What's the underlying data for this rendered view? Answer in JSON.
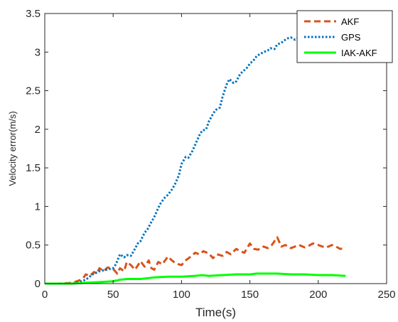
{
  "chart_data": {
    "type": "line",
    "title": "",
    "xlabel": "Time(s)",
    "ylabel": "Velocity error(m/s)",
    "xlim": [
      0,
      250
    ],
    "ylim": [
      0,
      3.5
    ],
    "xticks": [
      0,
      50,
      100,
      150,
      200,
      250
    ],
    "yticks": [
      0,
      0.5,
      1,
      1.5,
      2,
      2.5,
      3,
      3.5
    ],
    "xtick_labels": [
      "0",
      "50",
      "100",
      "150",
      "200",
      "250"
    ],
    "ytick_labels": [
      "0",
      "0.5",
      "1",
      "1.5",
      "2",
      "2.5",
      "3",
      "3.5"
    ],
    "grid": false,
    "legend_position": "top-right",
    "series": [
      {
        "name": "AKF",
        "color": "#D95319",
        "style": "dashed",
        "x": [
          0,
          10,
          20,
          25,
          28,
          30,
          33,
          36,
          38,
          40,
          43,
          46,
          50,
          53,
          55,
          58,
          60,
          63,
          66,
          70,
          73,
          76,
          78,
          80,
          83,
          86,
          90,
          93,
          96,
          100,
          103,
          106,
          110,
          113,
          116,
          120,
          123,
          126,
          130,
          133,
          136,
          140,
          143,
          146,
          150,
          153,
          156,
          160,
          163,
          166,
          170,
          173,
          176,
          180,
          183,
          186,
          190,
          193,
          196,
          200,
          203,
          206,
          210,
          213,
          216,
          220
        ],
        "y": [
          0.0,
          0.0,
          0.01,
          0.04,
          0.07,
          0.12,
          0.1,
          0.15,
          0.13,
          0.2,
          0.16,
          0.21,
          0.19,
          0.13,
          0.2,
          0.16,
          0.28,
          0.24,
          0.18,
          0.29,
          0.22,
          0.3,
          0.2,
          0.18,
          0.28,
          0.25,
          0.35,
          0.3,
          0.26,
          0.24,
          0.3,
          0.34,
          0.4,
          0.38,
          0.42,
          0.39,
          0.33,
          0.38,
          0.36,
          0.41,
          0.38,
          0.45,
          0.42,
          0.4,
          0.52,
          0.45,
          0.44,
          0.48,
          0.46,
          0.5,
          0.6,
          0.48,
          0.5,
          0.46,
          0.48,
          0.5,
          0.47,
          0.49,
          0.52,
          0.5,
          0.48,
          0.47,
          0.5,
          0.48,
          0.45,
          0.46
        ]
      },
      {
        "name": "GPS",
        "color": "#0072BD",
        "style": "dotted",
        "x": [
          0,
          20,
          25,
          30,
          35,
          40,
          45,
          50,
          52,
          55,
          58,
          60,
          63,
          65,
          68,
          70,
          73,
          75,
          78,
          80,
          83,
          85,
          88,
          90,
          93,
          95,
          98,
          100,
          103,
          105,
          108,
          110,
          113,
          115,
          118,
          120,
          123,
          125,
          128,
          130,
          133,
          135,
          138,
          140,
          143,
          145,
          148,
          150,
          153,
          155,
          158,
          160,
          163,
          165,
          168,
          170,
          173,
          175,
          178,
          180,
          183,
          185,
          190,
          195,
          200,
          205,
          210,
          215,
          220
        ],
        "y": [
          0.0,
          0.0,
          0.02,
          0.05,
          0.12,
          0.16,
          0.18,
          0.2,
          0.25,
          0.38,
          0.34,
          0.37,
          0.36,
          0.42,
          0.52,
          0.55,
          0.66,
          0.7,
          0.8,
          0.86,
          0.98,
          1.05,
          1.12,
          1.15,
          1.22,
          1.28,
          1.4,
          1.55,
          1.64,
          1.63,
          1.72,
          1.8,
          1.92,
          1.98,
          2.0,
          2.1,
          2.2,
          2.25,
          2.28,
          2.42,
          2.58,
          2.65,
          2.6,
          2.62,
          2.72,
          2.75,
          2.8,
          2.85,
          2.9,
          2.95,
          2.98,
          3.0,
          3.02,
          3.05,
          3.04,
          3.1,
          3.12,
          3.15,
          3.18,
          3.19,
          3.16,
          3.18,
          3.17,
          3.18,
          3.18,
          3.18,
          3.18,
          3.18,
          3.18
        ]
      },
      {
        "name": "IAK-AKF",
        "color": "#00FF00",
        "style": "solid",
        "x": [
          0,
          20,
          30,
          40,
          50,
          55,
          60,
          70,
          80,
          90,
          100,
          110,
          115,
          120,
          130,
          140,
          150,
          155,
          160,
          170,
          180,
          190,
          200,
          210,
          220
        ],
        "y": [
          0.0,
          0.0,
          0.01,
          0.02,
          0.03,
          0.05,
          0.06,
          0.06,
          0.08,
          0.09,
          0.09,
          0.1,
          0.11,
          0.1,
          0.11,
          0.12,
          0.12,
          0.13,
          0.13,
          0.13,
          0.12,
          0.12,
          0.11,
          0.11,
          0.1
        ]
      }
    ]
  }
}
